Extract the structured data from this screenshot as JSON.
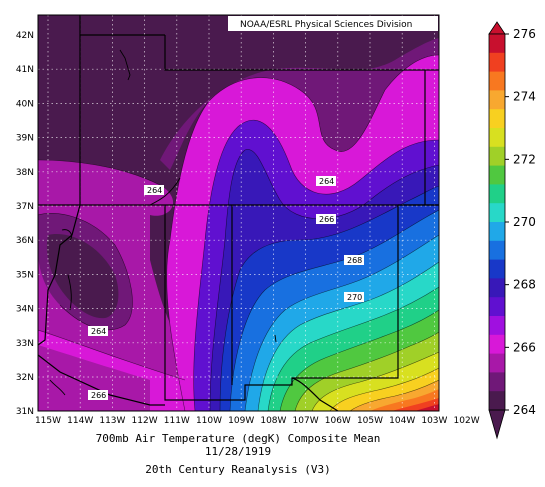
{
  "credit": "NOAA/ESRL Physical Sciences Division",
  "caption": {
    "line1": "700mb Air Temperature (degK) Composite Mean",
    "line2": "11/28/1919",
    "line3": "20th Century Reanalysis (V3)"
  },
  "lon_labels": [
    "115W",
    "114W",
    "113W",
    "112W",
    "111W",
    "110W",
    "109W",
    "108W",
    "107W",
    "106W",
    "105W",
    "104W",
    "103W",
    "102W"
  ],
  "lat_labels": [
    "42N",
    "41N",
    "40N",
    "39N",
    "38N",
    "37N",
    "36N",
    "35N",
    "34N",
    "33N",
    "32N",
    "31N"
  ],
  "contour_labels": [
    "264",
    "264",
    "266",
    "268",
    "270",
    "264",
    "266"
  ],
  "colorbar": {
    "labels": [
      "276",
      "274",
      "272",
      "270",
      "268",
      "266",
      "264"
    ],
    "colors": [
      "#c8102e",
      "#f04020",
      "#f87820",
      "#f8a830",
      "#f8d020",
      "#d8e020",
      "#a0d028",
      "#50c840",
      "#20d088",
      "#28d8c8",
      "#20a8e8",
      "#1870e0",
      "#1838c8",
      "#3818b8",
      "#6010d0",
      "#a010e0",
      "#d818d8",
      "#a818a8",
      "#701878",
      "#4a1a4e"
    ]
  },
  "palette": {
    "darkest": "#4a1a4e",
    "dark": "#701878",
    "purple": "#a818a8",
    "magenta": "#d818d8",
    "violet": "#6010d0",
    "indigo": "#3818b8",
    "blue": "#1838c8",
    "midblue": "#1870e0",
    "skyblue": "#20a8e8",
    "cyan": "#28d8c8",
    "teal": "#20d088",
    "green": "#50c840",
    "lime": "#a0d028",
    "yellowgreen": "#d8e020",
    "yellow": "#f8d020",
    "orange": "#f8a830",
    "darkorange": "#f87820",
    "red": "#f04020",
    "crimson": "#c8102e"
  }
}
